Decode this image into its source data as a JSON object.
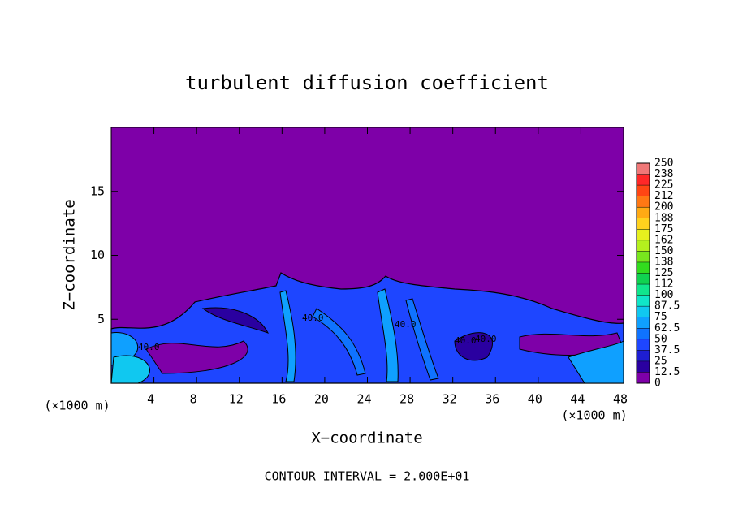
{
  "chart_data": {
    "type": "contour",
    "title": "turbulent diffusion coefficient",
    "x_label": "X−coordinate",
    "y_label": "Z−coordinate",
    "x_unit_left": "(×1000 m)",
    "x_unit_right": "(×1000 m)",
    "footer": "CONTOUR INTERVAL = 2.000E+01",
    "xlim": [
      0,
      48
    ],
    "xticks": [
      4,
      8,
      12,
      16,
      20,
      24,
      28,
      32,
      36,
      40,
      44,
      48
    ],
    "ylim": [
      0,
      20
    ],
    "yticks": [
      5,
      10,
      15
    ],
    "contour_labels": [
      "40.0",
      "40.0",
      "40.0",
      "40.0",
      "40.0"
    ],
    "colorbar": {
      "levels": [
        0,
        12.5,
        25,
        37.5,
        50,
        62.5,
        75,
        87.5,
        100,
        112,
        125,
        138,
        150,
        162,
        175,
        188,
        200,
        212,
        225,
        238,
        250
      ],
      "colors": [
        "#7e00a8",
        "#2a00a0",
        "#1e1ed2",
        "#1e46ff",
        "#0f73ff",
        "#0fa0ff",
        "#10c8f0",
        "#10e6c8",
        "#10e68c",
        "#10d250",
        "#32dc1e",
        "#78e61e",
        "#b4f01e",
        "#e6f01e",
        "#ffd21e",
        "#ffaa14",
        "#ff7814",
        "#ff4614",
        "#ff2828",
        "#f07878"
      ]
    }
  }
}
